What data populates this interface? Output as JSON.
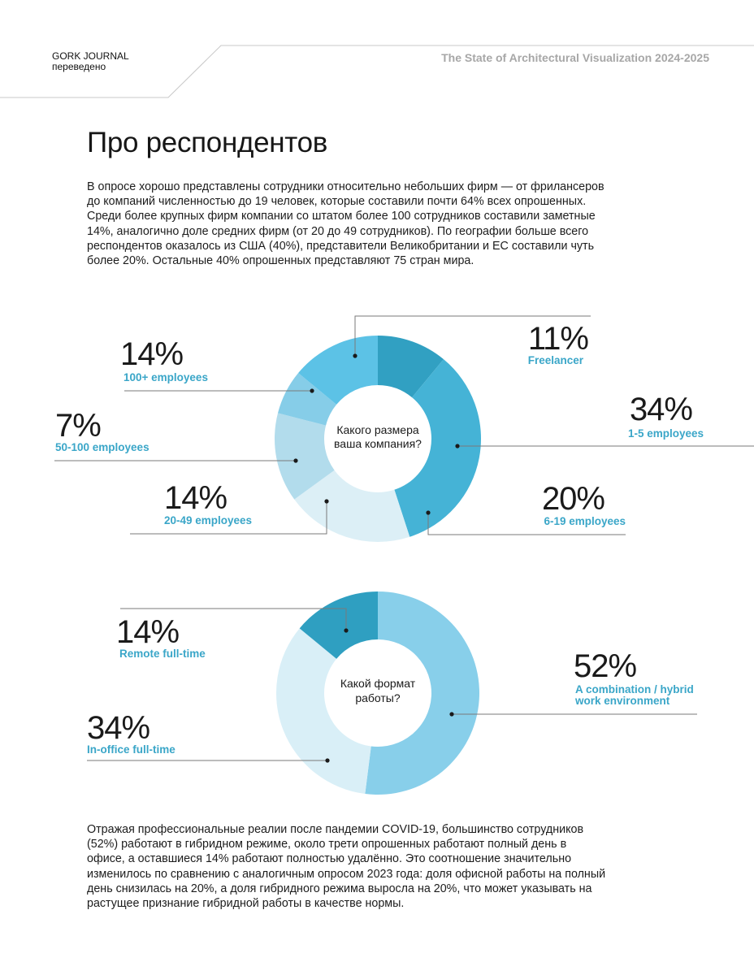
{
  "header": {
    "journal_name": "GORK JOURNAL",
    "journal_sub": "переведено",
    "report_title": "The State of Architectural Visualization 2024-2025"
  },
  "section": {
    "title": "Про респондентов",
    "intro": "В опросе хорошо представлены сотрудники относительно небольших фирм — от фрилансеров до компаний численностью до 19 человек, которые составили почти 64% всех опрошенных. Среди более крупных фирм компании со штатом более 100 сотрудников составили заметные 14%, аналогично доле средних фирм (от 20 до 49 сотрудников). По географии больше всего респондентов оказалось из США (40%), представители Великобритании и ЕС составили чуть более 20%. Остальные 40% опрошенных представляют 75 стран мира.",
    "outro": "Отражая профессиональные реалии после пандемии COVID-19, большинство сотрудников (52%) работают в гибридном режиме, около трети опрошенных работают полный день в офисе, а оставшиеся 14% работают полностью удалённо. Это соотношение значительно изменилось по сравнению с аналогичным опросом 2023 года: доля офисной работы на полный день снизилась на 20%, а доля гибридного режима выросла на 20%, что может указывать на растущее признание гибридной работы в качестве нормы."
  },
  "chart_data": [
    {
      "type": "pie",
      "title_lines": [
        "Какого размера",
        "ваша компания?"
      ],
      "slices": [
        {
          "label": "Freelancer",
          "value": 11,
          "display": "11%",
          "color": "#31a0c2"
        },
        {
          "label": "1-5 employees",
          "value": 34,
          "display": "34%",
          "color": "#45b3d6"
        },
        {
          "label": "6-19 employees",
          "value": 20,
          "display": "20%",
          "color": "#dceff6"
        },
        {
          "label": "20-49 employees",
          "value": 14,
          "display": "14%",
          "color": "#b2dcec"
        },
        {
          "label": "50-100 employees",
          "value": 7,
          "display": "7%",
          "color": "#86cde8"
        },
        {
          "label": "100+ employees",
          "value": 14,
          "display": "14%",
          "color": "#5cc2e6"
        }
      ]
    },
    {
      "type": "pie",
      "title_lines": [
        "Какой формат",
        "работы?"
      ],
      "slices": [
        {
          "label_lines": [
            "A combination / hybrid",
            "work environment"
          ],
          "value": 52,
          "display": "52%",
          "color": "#88cfea"
        },
        {
          "label_lines": [
            "In-office full-time"
          ],
          "value": 34,
          "display": "34%",
          "color": "#d9eff7"
        },
        {
          "label_lines": [
            "Remote full-time"
          ],
          "value": 14,
          "display": "14%",
          "color": "#2f9fc1"
        }
      ]
    }
  ]
}
